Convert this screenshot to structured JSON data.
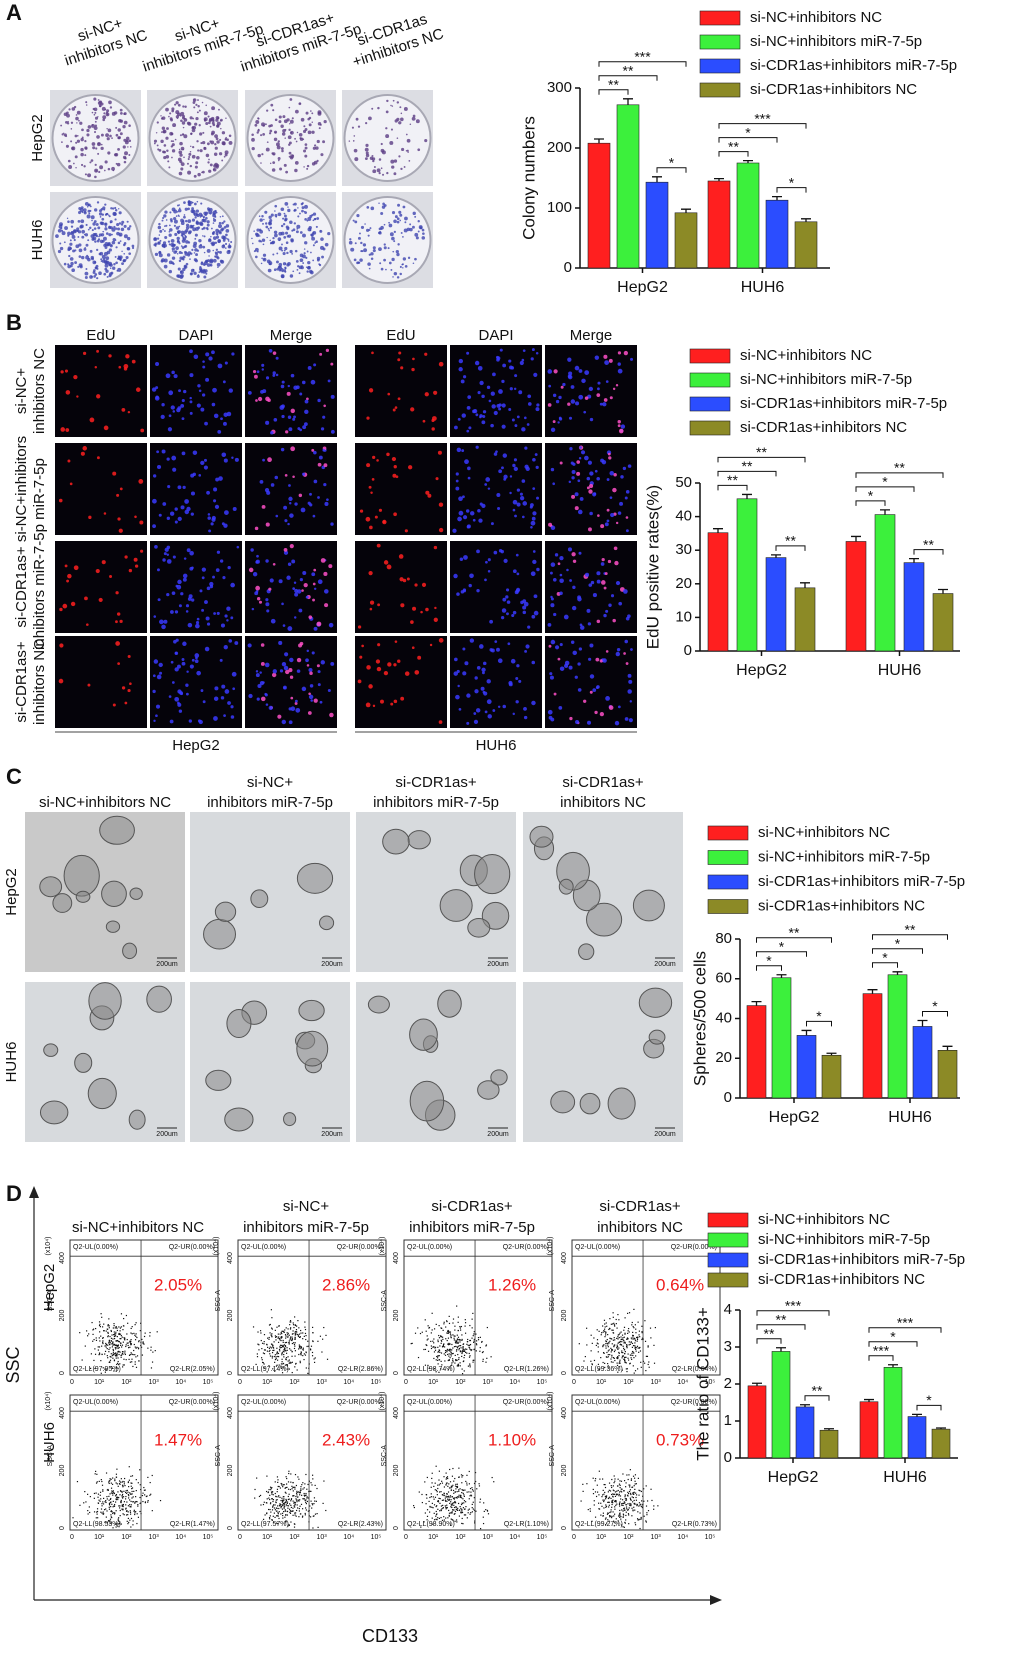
{
  "panels": [
    {
      "label": "A",
      "column_headers": [
        [
          "si-NC+",
          "inhibitors NC"
        ],
        [
          "si-NC+",
          "inhibitors miR-7-5p"
        ],
        [
          "si-CDR1as+",
          "inhibitors miR-7-5p"
        ],
        [
          "si-CDR1as",
          "+inhibitors NC"
        ]
      ],
      "row_labels": [
        "HepG2",
        "HUH6"
      ]
    },
    {
      "label": "B",
      "column_headers": [
        "EdU",
        "DAPI",
        "Merge"
      ],
      "row_labels": [
        [
          "si-NC+",
          "inhibitors NC"
        ],
        [
          "si-NC+inhibitors",
          "miR-7-5p"
        ],
        [
          "si-CDR1as+",
          "inhibitors miR-7-5p"
        ],
        [
          "si-CDR1as+",
          "inhibitors NC"
        ]
      ],
      "group_labels": [
        "HepG2",
        "HUH6"
      ]
    },
    {
      "label": "C",
      "column_headers": [
        [
          "si-NC+inhibitors NC"
        ],
        [
          "si-NC+",
          "inhibitors miR-7-5p"
        ],
        [
          "si-CDR1as+",
          "inhibitors miR-7-5p"
        ],
        [
          "si-CDR1as+",
          "inhibitors NC"
        ]
      ],
      "row_labels": [
        "HepG2",
        "HUH6"
      ],
      "scale_bar": "200um"
    },
    {
      "label": "D",
      "column_headers": [
        [
          "si-NC+inhibitors NC"
        ],
        [
          "si-NC+",
          "inhibitors miR-7-5p"
        ],
        [
          "si-CDR1as+",
          "inhibitors miR-7-5p"
        ],
        [
          "si-CDR1as+",
          "inhibitors NC"
        ]
      ],
      "row_labels": [
        "HepG2",
        "HUH6"
      ],
      "y_axis_label": "SSC",
      "x_axis_label": "CD133",
      "plot_y_label": "SSC-A",
      "plot_y_unit": "(x10⁴)",
      "plot_yticks": [
        "0",
        "200",
        "400"
      ],
      "plot_xticks": [
        "0",
        "10¹",
        "10²",
        "10³",
        "10⁴",
        "10⁵"
      ],
      "plots": [
        [
          {
            "percent": "2.05%",
            "quadrants": [
              "Q2-UL(0.00%)",
              "Q2-UR(0.00%)",
              "Q2-LL(97.95%)",
              "Q2-LR(2.05%)"
            ]
          },
          {
            "percent": "2.86%",
            "quadrants": [
              "Q2-UL(0.00%)",
              "Q2-UR(0.00%)",
              "Q2-LL(97.14%)",
              "Q2-LR(2.86%)"
            ]
          },
          {
            "percent": "1.26%",
            "quadrants": [
              "Q2-UL(0.00%)",
              "Q2-UR(0.00%)",
              "Q2-LL(98.74%)",
              "Q2-LR(1.26%)"
            ]
          },
          {
            "percent": "0.64%",
            "quadrants": [
              "Q2-UL(0.00%)",
              "Q2-UR(0.00%)",
              "Q2-LL(99.36%)",
              "Q2-LR(0.64%)"
            ]
          }
        ],
        [
          {
            "percent": "1.47%",
            "quadrants": [
              "Q2-UL(0.00%)",
              "Q2-UR(0.00%)",
              "Q2-LL(98.53%)",
              "Q2-LR(1.47%)"
            ]
          },
          {
            "percent": "2.43%",
            "quadrants": [
              "Q2-UL(0.00%)",
              "Q2-UR(0.00%)",
              "Q2-LL(97.57%)",
              "Q2-LR(2.43%)"
            ]
          },
          {
            "percent": "1.10%",
            "quadrants": [
              "Q2-UL(0.00%)",
              "Q2-UR(0.00%)",
              "Q2-LL(98.90%)",
              "Q2-LR(1.10%)"
            ]
          },
          {
            "percent": "0.73%",
            "quadrants": [
              "Q2-UL(0.00%)",
              "Q2-UR(0.00%)",
              "Q2-LL(99.27%)",
              "Q2-LR(0.73%)"
            ]
          }
        ]
      ]
    }
  ],
  "chart_data": [
    {
      "type": "bar",
      "y_label": "Colony numbers",
      "categories": [
        "HepG2",
        "HUH6"
      ],
      "series": [
        {
          "name": "si-NC+inhibitors NC",
          "color": "#ff1f1f",
          "values": [
            208,
            145
          ],
          "errors": [
            7,
            4
          ]
        },
        {
          "name": "si-NC+inhibitors miR-7-5p",
          "color": "#3cf03c",
          "values": [
            272,
            175
          ],
          "errors": [
            10,
            4
          ]
        },
        {
          "name": "si-CDR1as+inhibitors miR-7-5p",
          "color": "#2b4dff",
          "values": [
            143,
            113
          ],
          "errors": [
            9,
            6
          ]
        },
        {
          "name": "si-CDR1as+inhibitors NC",
          "color": "#8c8a26",
          "values": [
            92,
            77
          ],
          "errors": [
            6,
            5
          ]
        }
      ],
      "ylim": [
        0,
        300
      ],
      "yticks": [
        0,
        100,
        200,
        300
      ],
      "annotations": [
        {
          "category": 0,
          "pair": [
            0,
            1
          ],
          "label": "**"
        },
        {
          "category": 0,
          "pair": [
            0,
            2
          ],
          "label": "**"
        },
        {
          "category": 0,
          "pair": [
            0,
            3
          ],
          "label": "***"
        },
        {
          "category": 0,
          "pair": [
            2,
            3
          ],
          "label": "*"
        },
        {
          "category": 1,
          "pair": [
            0,
            1
          ],
          "label": "**"
        },
        {
          "category": 1,
          "pair": [
            0,
            2
          ],
          "label": "*"
        },
        {
          "category": 1,
          "pair": [
            0,
            3
          ],
          "label": "***"
        },
        {
          "category": 1,
          "pair": [
            2,
            3
          ],
          "label": "*"
        }
      ]
    },
    {
      "type": "bar",
      "y_label": "EdU positive rates(%)",
      "categories": [
        "HepG2",
        "HUH6"
      ],
      "series": [
        {
          "name": "si-NC+inhibitors NC",
          "color": "#ff1f1f",
          "values": [
            35.2,
            32.6
          ],
          "errors": [
            1.2,
            1.5
          ]
        },
        {
          "name": "si-NC+inhibitors miR-7-5p",
          "color": "#3cf03c",
          "values": [
            45.3,
            40.6
          ],
          "errors": [
            1.3,
            1.4
          ]
        },
        {
          "name": "si-CDR1as+inhibitors miR-7-5p",
          "color": "#2b4dff",
          "values": [
            27.8,
            26.3
          ],
          "errors": [
            0.8,
            1.2
          ]
        },
        {
          "name": "si-CDR1as+inhibitors NC",
          "color": "#8c8a26",
          "values": [
            18.8,
            17.1
          ],
          "errors": [
            1.5,
            1.2
          ]
        }
      ],
      "ylim": [
        0,
        50
      ],
      "yticks": [
        0,
        10,
        20,
        30,
        40,
        50
      ],
      "annotations": [
        {
          "category": 0,
          "pair": [
            0,
            1
          ],
          "label": "**"
        },
        {
          "category": 0,
          "pair": [
            0,
            2
          ],
          "label": "**"
        },
        {
          "category": 0,
          "pair": [
            0,
            3
          ],
          "label": "**"
        },
        {
          "category": 0,
          "pair": [
            2,
            3
          ],
          "label": "**"
        },
        {
          "category": 1,
          "pair": [
            0,
            1
          ],
          "label": "*"
        },
        {
          "category": 1,
          "pair": [
            0,
            2
          ],
          "label": "*"
        },
        {
          "category": 1,
          "pair": [
            0,
            3
          ],
          "label": "**"
        },
        {
          "category": 1,
          "pair": [
            2,
            3
          ],
          "label": "**"
        }
      ]
    },
    {
      "type": "bar",
      "y_label": "Spheres/500 cells",
      "categories": [
        "HepG2",
        "HUH6"
      ],
      "series": [
        {
          "name": "si-NC+inhibitors NC",
          "color": "#ff1f1f",
          "values": [
            46.5,
            52.5
          ],
          "errors": [
            2,
            2
          ]
        },
        {
          "name": "si-NC+inhibitors miR-7-5p",
          "color": "#3cf03c",
          "values": [
            60.5,
            62
          ],
          "errors": [
            1.5,
            1.5
          ]
        },
        {
          "name": "si-CDR1as+inhibitors miR-7-5p",
          "color": "#2b4dff",
          "values": [
            31.5,
            36
          ],
          "errors": [
            2.5,
            3
          ]
        },
        {
          "name": "si-CDR1as+inhibitors NC",
          "color": "#8c8a26",
          "values": [
            21.5,
            24
          ],
          "errors": [
            1,
            2
          ]
        }
      ],
      "ylim": [
        0,
        80
      ],
      "yticks": [
        0,
        20,
        40,
        60,
        80
      ],
      "annotations": [
        {
          "category": 0,
          "pair": [
            0,
            1
          ],
          "label": "*"
        },
        {
          "category": 0,
          "pair": [
            0,
            2
          ],
          "label": "*"
        },
        {
          "category": 0,
          "pair": [
            0,
            3
          ],
          "label": "**"
        },
        {
          "category": 0,
          "pair": [
            2,
            3
          ],
          "label": "*"
        },
        {
          "category": 1,
          "pair": [
            0,
            1
          ],
          "label": "*"
        },
        {
          "category": 1,
          "pair": [
            0,
            2
          ],
          "label": "*"
        },
        {
          "category": 1,
          "pair": [
            0,
            3
          ],
          "label": "**"
        },
        {
          "category": 1,
          "pair": [
            2,
            3
          ],
          "label": "*"
        }
      ]
    },
    {
      "type": "bar",
      "y_label": "The ratio of CD133+",
      "categories": [
        "HepG2",
        "HUH6"
      ],
      "series": [
        {
          "name": "si-NC+inhibitors NC",
          "color": "#ff1f1f",
          "values": [
            1.95,
            1.52
          ],
          "errors": [
            0.07,
            0.06
          ]
        },
        {
          "name": "si-NC+inhibitors miR-7-5p",
          "color": "#3cf03c",
          "values": [
            2.88,
            2.45
          ],
          "errors": [
            0.1,
            0.07
          ]
        },
        {
          "name": "si-CDR1as+inhibitors miR-7-5p",
          "color": "#2b4dff",
          "values": [
            1.38,
            1.12
          ],
          "errors": [
            0.06,
            0.06
          ]
        },
        {
          "name": "si-CDR1as+inhibitors NC",
          "color": "#8c8a26",
          "values": [
            0.75,
            0.78
          ],
          "errors": [
            0.04,
            0.03
          ]
        }
      ],
      "ylim": [
        0,
        4
      ],
      "yticks": [
        0,
        1,
        2,
        3,
        4
      ],
      "annotations": [
        {
          "category": 0,
          "pair": [
            0,
            1
          ],
          "label": "**"
        },
        {
          "category": 0,
          "pair": [
            0,
            2
          ],
          "label": "**"
        },
        {
          "category": 0,
          "pair": [
            0,
            3
          ],
          "label": "***"
        },
        {
          "category": 0,
          "pair": [
            2,
            3
          ],
          "label": "**"
        },
        {
          "category": 1,
          "pair": [
            0,
            1
          ],
          "label": "***"
        },
        {
          "category": 1,
          "pair": [
            0,
            2
          ],
          "label": "*"
        },
        {
          "category": 1,
          "pair": [
            0,
            3
          ],
          "label": "***"
        },
        {
          "category": 1,
          "pair": [
            2,
            3
          ],
          "label": "*"
        }
      ]
    }
  ]
}
